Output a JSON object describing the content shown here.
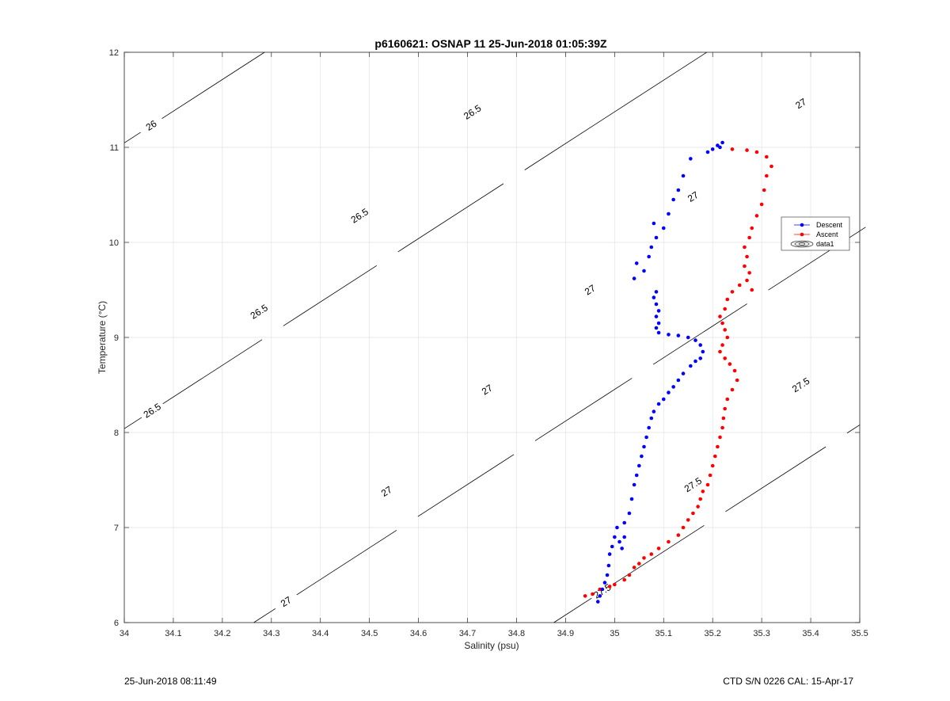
{
  "footer": {
    "left": "25-Jun-2018 08:11:49",
    "right": "CTD S/N 0226  CAL: 15-Apr-17"
  },
  "chart_data": {
    "type": "scatter",
    "title": "p6160621: OSNAP 11 25-Jun-2018 01:05:39Z",
    "xlabel": "Salinity (psu)",
    "ylabel": "Temperature (°C)",
    "xlim": [
      34,
      35.5
    ],
    "ylim": [
      6,
      12
    ],
    "xticks": [
      "34",
      "34.1",
      "34.2",
      "34.3",
      "34.4",
      "34.5",
      "34.6",
      "34.7",
      "34.8",
      "34.9",
      "35",
      "35.1",
      "35.2",
      "35.3",
      "35.4",
      "35.5"
    ],
    "yticks": [
      "6",
      "7",
      "8",
      "9",
      "10",
      "11",
      "12"
    ],
    "grid": true,
    "legend_position": "right",
    "series": [
      {
        "name": "Descent",
        "color": "#0000ff",
        "points": [
          [
            34.966,
            6.22
          ],
          [
            34.97,
            6.28
          ],
          [
            34.975,
            6.35
          ],
          [
            34.98,
            6.42
          ],
          [
            34.985,
            6.5
          ],
          [
            34.988,
            6.6
          ],
          [
            34.99,
            6.72
          ],
          [
            34.995,
            6.8
          ],
          [
            35.0,
            6.9
          ],
          [
            35.005,
            7.0
          ],
          [
            35.01,
            6.85
          ],
          [
            35.015,
            6.78
          ],
          [
            35.02,
            6.9
          ],
          [
            35.02,
            7.05
          ],
          [
            35.03,
            7.15
          ],
          [
            35.035,
            7.3
          ],
          [
            35.04,
            7.45
          ],
          [
            35.045,
            7.55
          ],
          [
            35.05,
            7.65
          ],
          [
            35.055,
            7.75
          ],
          [
            35.06,
            7.85
          ],
          [
            35.065,
            7.95
          ],
          [
            35.07,
            8.05
          ],
          [
            35.075,
            8.15
          ],
          [
            35.08,
            8.22
          ],
          [
            35.09,
            8.3
          ],
          [
            35.1,
            8.35
          ],
          [
            35.11,
            8.42
          ],
          [
            35.12,
            8.48
          ],
          [
            35.13,
            8.55
          ],
          [
            35.14,
            8.62
          ],
          [
            35.155,
            8.7
          ],
          [
            35.165,
            8.75
          ],
          [
            35.175,
            8.78
          ],
          [
            35.18,
            8.85
          ],
          [
            35.175,
            8.92
          ],
          [
            35.165,
            8.97
          ],
          [
            35.15,
            9.0
          ],
          [
            35.13,
            9.02
          ],
          [
            35.11,
            9.03
          ],
          [
            35.09,
            9.05
          ],
          [
            35.085,
            9.1
          ],
          [
            35.09,
            9.15
          ],
          [
            35.085,
            9.22
          ],
          [
            35.09,
            9.28
          ],
          [
            35.085,
            9.35
          ],
          [
            35.08,
            9.42
          ],
          [
            35.085,
            9.48
          ],
          [
            35.04,
            9.62
          ],
          [
            35.06,
            9.7
          ],
          [
            35.045,
            9.78
          ],
          [
            35.07,
            9.85
          ],
          [
            35.075,
            9.95
          ],
          [
            35.085,
            10.05
          ],
          [
            35.08,
            10.2
          ],
          [
            35.1,
            10.15
          ],
          [
            35.11,
            10.3
          ],
          [
            35.12,
            10.45
          ],
          [
            35.13,
            10.55
          ],
          [
            35.14,
            10.7
          ],
          [
            35.155,
            10.88
          ],
          [
            35.19,
            10.95
          ],
          [
            35.21,
            11.02
          ],
          [
            35.22,
            11.05
          ],
          [
            35.215,
            11.0
          ],
          [
            35.2,
            10.98
          ]
        ]
      },
      {
        "name": "Ascent",
        "color": "#ff0000",
        "points": [
          [
            34.94,
            6.28
          ],
          [
            34.955,
            6.3
          ],
          [
            34.97,
            6.35
          ],
          [
            34.99,
            6.38
          ],
          [
            35.0,
            6.4
          ],
          [
            35.02,
            6.45
          ],
          [
            35.03,
            6.5
          ],
          [
            35.04,
            6.58
          ],
          [
            35.05,
            6.62
          ],
          [
            35.06,
            6.68
          ],
          [
            35.075,
            6.72
          ],
          [
            35.09,
            6.78
          ],
          [
            35.11,
            6.85
          ],
          [
            35.13,
            6.92
          ],
          [
            35.14,
            7.0
          ],
          [
            35.15,
            7.08
          ],
          [
            35.16,
            7.15
          ],
          [
            35.17,
            7.22
          ],
          [
            35.175,
            7.3
          ],
          [
            35.18,
            7.38
          ],
          [
            35.19,
            7.45
          ],
          [
            35.195,
            7.55
          ],
          [
            35.2,
            7.65
          ],
          [
            35.205,
            7.75
          ],
          [
            35.21,
            7.85
          ],
          [
            35.215,
            7.95
          ],
          [
            35.22,
            8.05
          ],
          [
            35.222,
            8.15
          ],
          [
            35.225,
            8.25
          ],
          [
            35.23,
            8.35
          ],
          [
            35.24,
            8.45
          ],
          [
            35.25,
            8.55
          ],
          [
            35.245,
            8.65
          ],
          [
            35.235,
            8.72
          ],
          [
            35.225,
            8.78
          ],
          [
            35.215,
            8.85
          ],
          [
            35.22,
            8.92
          ],
          [
            35.23,
            9.0
          ],
          [
            35.225,
            9.08
          ],
          [
            35.22,
            9.15
          ],
          [
            35.215,
            9.22
          ],
          [
            35.225,
            9.3
          ],
          [
            35.23,
            9.4
          ],
          [
            35.24,
            9.48
          ],
          [
            35.255,
            9.55
          ],
          [
            35.27,
            9.6
          ],
          [
            35.28,
            9.5
          ],
          [
            35.275,
            9.68
          ],
          [
            35.265,
            9.75
          ],
          [
            35.27,
            9.85
          ],
          [
            35.265,
            9.95
          ],
          [
            35.275,
            10.05
          ],
          [
            35.28,
            10.15
          ],
          [
            35.29,
            10.28
          ],
          [
            35.3,
            10.4
          ],
          [
            35.305,
            10.55
          ],
          [
            35.31,
            10.7
          ],
          [
            35.32,
            10.8
          ],
          [
            35.31,
            10.9
          ],
          [
            35.29,
            10.95
          ],
          [
            35.27,
            10.97
          ],
          [
            35.24,
            10.98
          ]
        ]
      },
      {
        "name": "data1",
        "type": "contour"
      }
    ],
    "isopycnals": [
      {
        "label": "26",
        "label_positions": [
          [
            34.055,
            11.23
          ]
        ]
      },
      {
        "label": "26.5",
        "label_positions": [
          [
            34.057,
            8.23
          ],
          [
            34.275,
            9.27
          ],
          [
            34.48,
            10.28
          ],
          [
            34.71,
            11.37
          ]
        ]
      },
      {
        "label": "27",
        "label_positions": [
          [
            34.33,
            6.22
          ],
          [
            34.535,
            7.38
          ],
          [
            34.74,
            8.45
          ],
          [
            34.95,
            9.5
          ],
          [
            35.16,
            10.48
          ],
          [
            35.38,
            11.46
          ]
        ]
      },
      {
        "label": "27.5",
        "label_positions": [
          [
            34.975,
            6.33
          ],
          [
            35.16,
            7.45
          ],
          [
            35.38,
            8.5
          ]
        ]
      }
    ]
  }
}
